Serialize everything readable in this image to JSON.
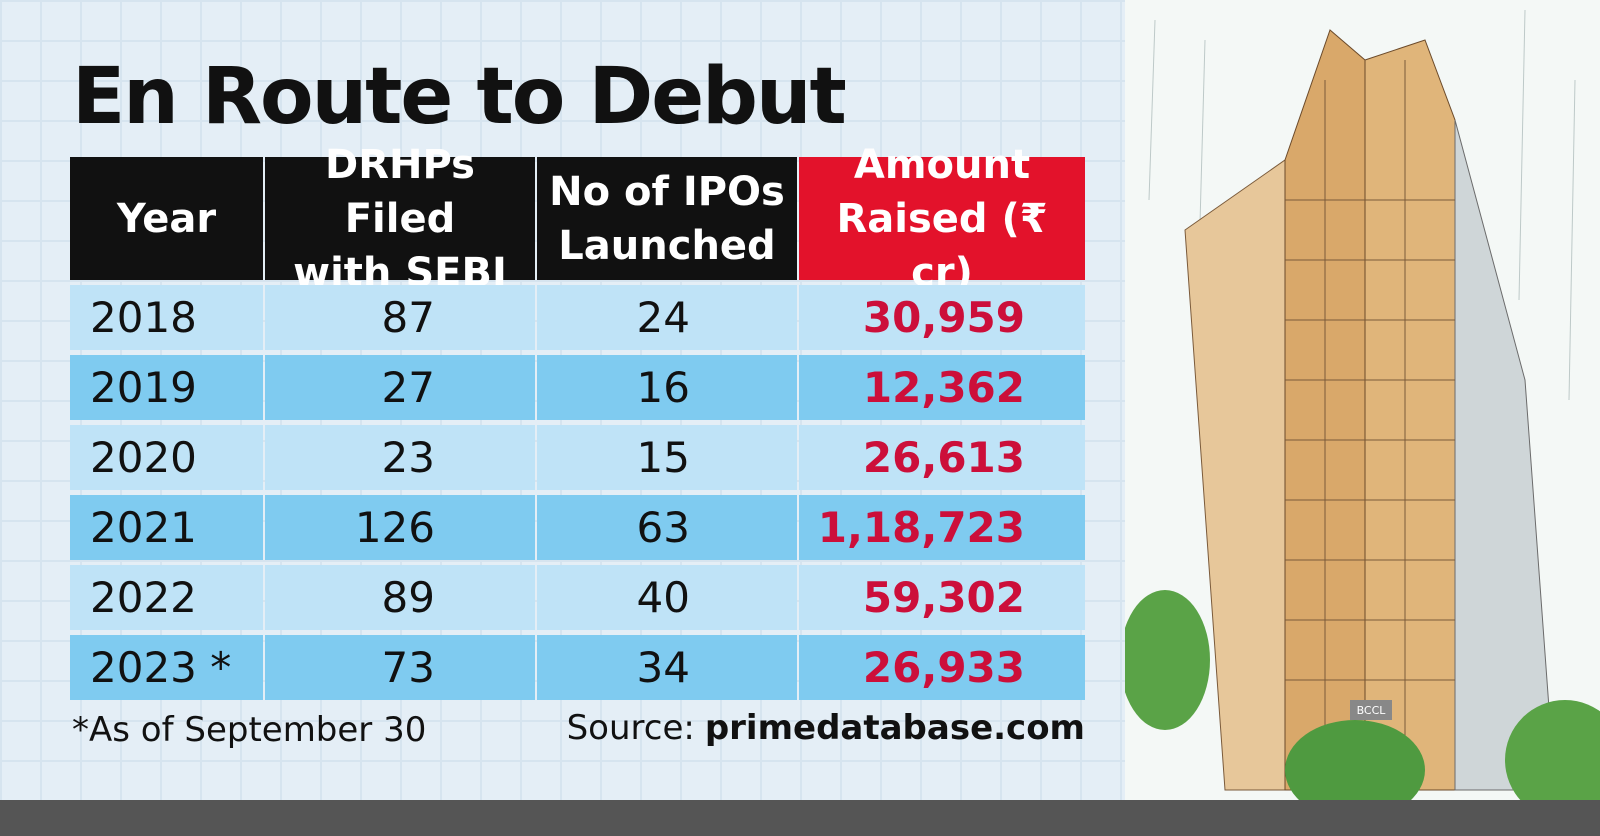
{
  "title": "En Route to Debut",
  "table": {
    "header": [
      [
        "Year"
      ],
      [
        "DRHPs Filed",
        "with SEBI"
      ],
      [
        "No of IPOs",
        "Launched"
      ],
      [
        "Amount",
        "Raised (₹ cr)"
      ]
    ],
    "rows": [
      [
        "2018",
        "87",
        "24",
        "30,959"
      ],
      [
        "2019",
        "27",
        "16",
        "12,362"
      ],
      [
        "2020",
        "23",
        "15",
        "26,613"
      ],
      [
        "2021",
        "126",
        "63",
        "1,18,723"
      ],
      [
        "2022",
        "89",
        "40",
        "59,302"
      ],
      [
        "2023 *",
        "73",
        "34",
        "26,933"
      ]
    ]
  },
  "footnote": "*As of September 30",
  "source": {
    "label": "Source:",
    "value": "primedatabase.com"
  },
  "watermark": "BCCL"
}
